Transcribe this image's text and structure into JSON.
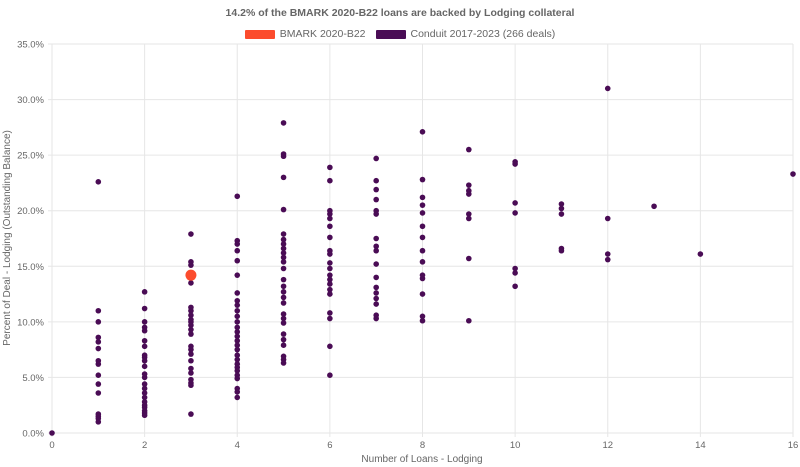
{
  "chart_data": {
    "type": "scatter",
    "title": "14.2% of the BMARK 2020-B22 loans are backed by Lodging collateral",
    "xlabel": "Number of Loans - Lodging",
    "ylabel": "Percent of Deal - Lodging (Outstanding Balance)",
    "xlim": [
      0,
      16
    ],
    "ylim": [
      0,
      35
    ],
    "x_ticks": [
      "0",
      "2",
      "4",
      "6",
      "8",
      "10",
      "12",
      "14",
      "16"
    ],
    "y_ticks": [
      "0.0%",
      "5.0%",
      "10.0%",
      "15.0%",
      "20.0%",
      "25.0%",
      "30.0%",
      "35.0%"
    ],
    "grid": true,
    "legend_position": "top",
    "series": [
      {
        "name": "BMARK 2020-B22",
        "color": "#fc4c2d",
        "points": [
          [
            3,
            14.2
          ]
        ]
      },
      {
        "name": "Conduit 2017-2023 (266 deals)",
        "color": "#4a0c55",
        "points": [
          [
            0,
            0.0
          ],
          [
            1,
            22.6
          ],
          [
            1,
            11.0
          ],
          [
            1,
            10.0
          ],
          [
            1,
            8.6
          ],
          [
            1,
            8.2
          ],
          [
            1,
            7.6
          ],
          [
            1,
            6.5
          ],
          [
            1,
            6.2
          ],
          [
            1,
            5.2
          ],
          [
            1,
            4.4
          ],
          [
            1,
            3.6
          ],
          [
            1,
            1.7
          ],
          [
            1,
            1.5
          ],
          [
            1,
            1.3
          ],
          [
            1,
            1.0
          ],
          [
            2,
            12.7
          ],
          [
            2,
            11.2
          ],
          [
            2,
            10.0
          ],
          [
            2,
            9.5
          ],
          [
            2,
            9.2
          ],
          [
            2,
            8.3
          ],
          [
            2,
            7.8
          ],
          [
            2,
            7.0
          ],
          [
            2,
            6.8
          ],
          [
            2,
            6.5
          ],
          [
            2,
            6.0
          ],
          [
            2,
            5.3
          ],
          [
            2,
            5.0
          ],
          [
            2,
            4.4
          ],
          [
            2,
            4.0
          ],
          [
            2,
            3.6
          ],
          [
            2,
            3.2
          ],
          [
            2,
            2.8
          ],
          [
            2,
            2.5
          ],
          [
            2,
            2.3
          ],
          [
            2,
            2.0
          ],
          [
            2,
            1.8
          ],
          [
            2,
            1.6
          ],
          [
            3,
            17.9
          ],
          [
            3,
            15.4
          ],
          [
            3,
            15.1
          ],
          [
            3,
            13.5
          ],
          [
            3,
            11.3
          ],
          [
            3,
            11.0
          ],
          [
            3,
            10.6
          ],
          [
            3,
            10.2
          ],
          [
            3,
            10.0
          ],
          [
            3,
            9.7
          ],
          [
            3,
            9.3
          ],
          [
            3,
            8.9
          ],
          [
            3,
            7.8
          ],
          [
            3,
            7.5
          ],
          [
            3,
            7.1
          ],
          [
            3,
            6.5
          ],
          [
            3,
            5.8
          ],
          [
            3,
            5.4
          ],
          [
            3,
            4.8
          ],
          [
            3,
            4.5
          ],
          [
            3,
            4.3
          ],
          [
            3,
            1.7
          ],
          [
            4,
            21.3
          ],
          [
            4,
            17.3
          ],
          [
            4,
            17.0
          ],
          [
            4,
            16.4
          ],
          [
            4,
            15.5
          ],
          [
            4,
            14.2
          ],
          [
            4,
            12.6
          ],
          [
            4,
            11.9
          ],
          [
            4,
            11.5
          ],
          [
            4,
            11.0
          ],
          [
            4,
            10.5
          ],
          [
            4,
            10.0
          ],
          [
            4,
            9.5
          ],
          [
            4,
            9.1
          ],
          [
            4,
            8.7
          ],
          [
            4,
            8.3
          ],
          [
            4,
            7.9
          ],
          [
            4,
            7.5
          ],
          [
            4,
            7.0
          ],
          [
            4,
            6.6
          ],
          [
            4,
            6.2
          ],
          [
            4,
            5.9
          ],
          [
            4,
            5.6
          ],
          [
            4,
            5.2
          ],
          [
            4,
            4.9
          ],
          [
            4,
            4.0
          ],
          [
            4,
            3.7
          ],
          [
            4,
            3.2
          ],
          [
            5,
            27.9
          ],
          [
            5,
            25.1
          ],
          [
            5,
            24.9
          ],
          [
            5,
            23.0
          ],
          [
            5,
            20.1
          ],
          [
            5,
            17.9
          ],
          [
            5,
            17.4
          ],
          [
            5,
            17.0
          ],
          [
            5,
            16.6
          ],
          [
            5,
            16.2
          ],
          [
            5,
            15.8
          ],
          [
            5,
            15.4
          ],
          [
            5,
            14.8
          ],
          [
            5,
            13.8
          ],
          [
            5,
            13.2
          ],
          [
            5,
            12.7
          ],
          [
            5,
            12.2
          ],
          [
            5,
            11.7
          ],
          [
            5,
            10.7
          ],
          [
            5,
            10.3
          ],
          [
            5,
            9.9
          ],
          [
            5,
            8.9
          ],
          [
            5,
            8.4
          ],
          [
            5,
            7.9
          ],
          [
            5,
            6.9
          ],
          [
            5,
            6.6
          ],
          [
            5,
            6.3
          ],
          [
            6,
            23.9
          ],
          [
            6,
            22.7
          ],
          [
            6,
            20.0
          ],
          [
            6,
            19.7
          ],
          [
            6,
            19.3
          ],
          [
            6,
            18.6
          ],
          [
            6,
            17.6
          ],
          [
            6,
            16.4
          ],
          [
            6,
            16.1
          ],
          [
            6,
            15.3
          ],
          [
            6,
            14.8
          ],
          [
            6,
            14.2
          ],
          [
            6,
            13.8
          ],
          [
            6,
            13.4
          ],
          [
            6,
            12.9
          ],
          [
            6,
            12.5
          ],
          [
            6,
            10.8
          ],
          [
            6,
            10.3
          ],
          [
            6,
            7.8
          ],
          [
            6,
            5.2
          ],
          [
            7,
            24.7
          ],
          [
            7,
            22.7
          ],
          [
            7,
            21.9
          ],
          [
            7,
            21.0
          ],
          [
            7,
            20.0
          ],
          [
            7,
            19.7
          ],
          [
            7,
            17.5
          ],
          [
            7,
            16.8
          ],
          [
            7,
            16.4
          ],
          [
            7,
            15.2
          ],
          [
            7,
            14.0
          ],
          [
            7,
            13.1
          ],
          [
            7,
            12.6
          ],
          [
            7,
            12.1
          ],
          [
            7,
            11.6
          ],
          [
            7,
            10.6
          ],
          [
            7,
            10.3
          ],
          [
            8,
            27.1
          ],
          [
            8,
            22.8
          ],
          [
            8,
            21.2
          ],
          [
            8,
            20.5
          ],
          [
            8,
            19.8
          ],
          [
            8,
            18.6
          ],
          [
            8,
            17.6
          ],
          [
            8,
            16.4
          ],
          [
            8,
            15.4
          ],
          [
            8,
            14.2
          ],
          [
            8,
            13.9
          ],
          [
            8,
            12.5
          ],
          [
            8,
            10.5
          ],
          [
            8,
            10.1
          ],
          [
            9,
            25.5
          ],
          [
            9,
            22.3
          ],
          [
            9,
            21.8
          ],
          [
            9,
            21.5
          ],
          [
            9,
            19.7
          ],
          [
            9,
            19.3
          ],
          [
            9,
            15.7
          ],
          [
            9,
            10.1
          ],
          [
            10,
            24.4
          ],
          [
            10,
            24.2
          ],
          [
            10,
            20.7
          ],
          [
            10,
            19.8
          ],
          [
            10,
            14.8
          ],
          [
            10,
            14.4
          ],
          [
            10,
            13.2
          ],
          [
            11,
            20.6
          ],
          [
            11,
            20.2
          ],
          [
            11,
            19.7
          ],
          [
            11,
            16.6
          ],
          [
            11,
            16.4
          ],
          [
            12,
            31.0
          ],
          [
            12,
            19.3
          ],
          [
            12,
            16.1
          ],
          [
            12,
            15.6
          ],
          [
            13,
            20.4
          ],
          [
            14,
            16.1
          ],
          [
            16,
            23.3
          ]
        ]
      }
    ]
  }
}
